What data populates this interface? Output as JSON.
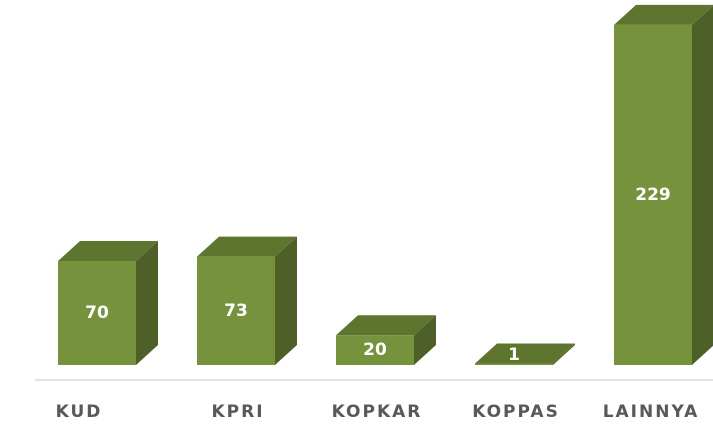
{
  "chart_data": {
    "type": "bar3d",
    "categories": [
      "KUD",
      "KPRI",
      "KOPKAR",
      "KOPPAS",
      "LAINNYA"
    ],
    "values": [
      70,
      73,
      20,
      1,
      229
    ],
    "color": "#76923c"
  }
}
